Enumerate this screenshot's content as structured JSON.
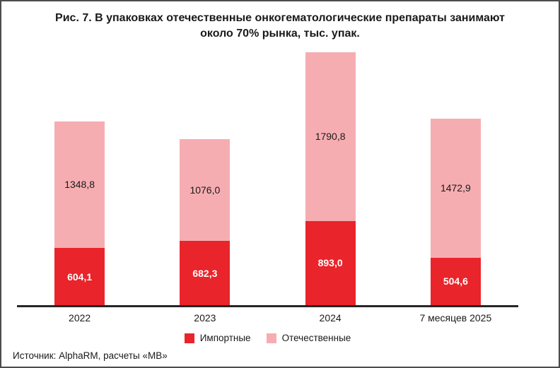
{
  "header": {
    "line1": "Рис. 7. В упаковках отечественные онкогематологические препараты занимают",
    "line2": "около 70% рынка, тыс. упак."
  },
  "source": "Источник: AlphaRM, расчеты «МВ»",
  "colors": {
    "imported": "#e9242b",
    "domestic": "#f6adb1",
    "axis": "#262626",
    "text": "#1a1a1a",
    "value_label_on_red": "#ffffff"
  },
  "chart_data": {
    "type": "bar",
    "stacked": true,
    "title": "Рис. 7. В упаковках отечественные онкогематологические препараты занимают около 70% рынка, тыс. упак.",
    "xlabel": "",
    "ylabel": "тыс. упак.",
    "categories": [
      "2022",
      "2023",
      "2024",
      "7 месяцев 2025"
    ],
    "series": [
      {
        "name": "Импортные",
        "color": "#e9242b",
        "values": [
          604.1,
          682.3,
          893.0,
          504.6
        ],
        "value_labels": [
          "604,1",
          "682,3",
          "893,0",
          "504,6"
        ]
      },
      {
        "name": "Отечественные",
        "color": "#f6adb1",
        "values": [
          1348.8,
          1076.0,
          1790.8,
          1472.9
        ],
        "value_labels": [
          "1348,8",
          "1076,0",
          "1790,8",
          "1472,9"
        ]
      }
    ],
    "totals": [
      1952.9,
      1758.3,
      2683.8,
      1977.5
    ],
    "ylim": [
      0,
      2700
    ],
    "grid": false,
    "legend_position": "bottom",
    "value_labels_shown": true
  }
}
